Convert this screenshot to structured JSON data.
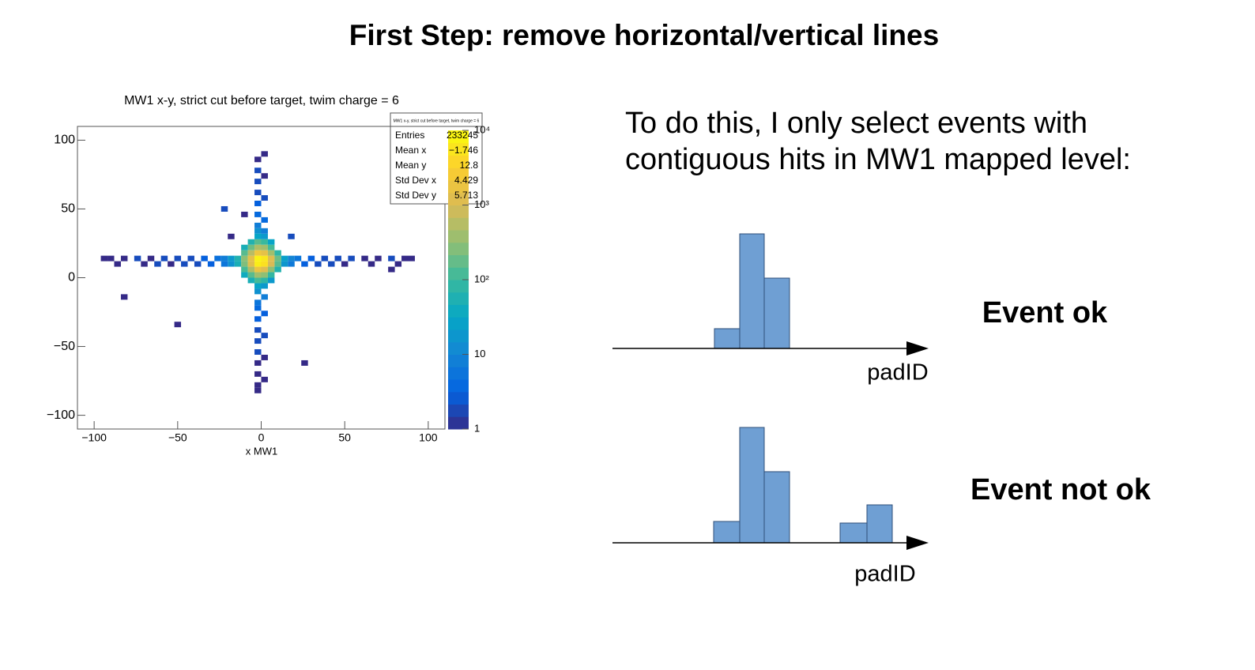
{
  "title": "First Step: remove horizontal/vertical lines",
  "chart_data": {
    "type": "heatmap",
    "title": "MW1 x-y, strict cut before target, twim charge = 6",
    "x_label": "x MW1",
    "xlim": [
      -110,
      110
    ],
    "ylim": [
      -110,
      110
    ],
    "xticks": [
      {
        "value": -100,
        "label": "−100"
      },
      {
        "value": -50,
        "label": "−50"
      },
      0,
      50,
      100
    ],
    "yticks": [
      {
        "value": -100,
        "label": "−100"
      },
      {
        "value": -50,
        "label": "−50"
      },
      0,
      50,
      100
    ],
    "bin_width": 4,
    "zlim": [
      1,
      10000
    ],
    "zscale": "log",
    "zticks": [
      1,
      10,
      {
        "value": 100,
        "label": "10²"
      },
      {
        "value": 1000,
        "label": "10³"
      },
      {
        "value": 10000,
        "label": "10⁴"
      }
    ],
    "palette": [
      "#352a87",
      "#0363e1",
      "#1485d4",
      "#06a7c6",
      "#38b99e",
      "#92bf73",
      "#d9ba56",
      "#fcce2e",
      "#f9fb0e"
    ],
    "cells": [
      [
        -14,
        14,
        60
      ],
      [
        -10,
        14,
        300
      ],
      [
        -6,
        14,
        1500
      ],
      [
        -2,
        14,
        8000
      ],
      [
        2,
        14,
        6000
      ],
      [
        6,
        14,
        1200
      ],
      [
        10,
        14,
        200
      ],
      [
        -14,
        10,
        50
      ],
      [
        -10,
        10,
        250
      ],
      [
        -6,
        10,
        1300
      ],
      [
        -2,
        10,
        7000
      ],
      [
        2,
        10,
        5000
      ],
      [
        6,
        10,
        1000
      ],
      [
        10,
        10,
        150
      ],
      [
        -10,
        18,
        150
      ],
      [
        -6,
        18,
        600
      ],
      [
        -2,
        18,
        2000
      ],
      [
        2,
        18,
        1500
      ],
      [
        6,
        18,
        400
      ],
      [
        10,
        18,
        80
      ],
      [
        -10,
        6,
        120
      ],
      [
        -6,
        6,
        500
      ],
      [
        -2,
        6,
        1800
      ],
      [
        2,
        6,
        1200
      ],
      [
        6,
        6,
        300
      ],
      [
        10,
        6,
        60
      ],
      [
        -10,
        22,
        50
      ],
      [
        -6,
        22,
        200
      ],
      [
        -2,
        22,
        500
      ],
      [
        2,
        22,
        400
      ],
      [
        6,
        22,
        120
      ],
      [
        -10,
        2,
        40
      ],
      [
        -6,
        2,
        150
      ],
      [
        -2,
        2,
        400
      ],
      [
        2,
        2,
        300
      ],
      [
        6,
        2,
        90
      ],
      [
        -6,
        26,
        60
      ],
      [
        -2,
        26,
        150
      ],
      [
        2,
        26,
        100
      ],
      [
        6,
        26,
        30
      ],
      [
        -6,
        -2,
        50
      ],
      [
        -2,
        -2,
        120
      ],
      [
        2,
        -2,
        80
      ],
      [
        6,
        -2,
        20
      ],
      [
        -18,
        14,
        20
      ],
      [
        -22,
        14,
        8
      ],
      [
        -26,
        14,
        5
      ],
      [
        -34,
        14,
        3
      ],
      [
        -42,
        14,
        2
      ],
      [
        -50,
        14,
        2
      ],
      [
        -58,
        14,
        2
      ],
      [
        -66,
        14,
        1
      ],
      [
        -74,
        14,
        2
      ],
      [
        -82,
        14,
        1
      ],
      [
        -90,
        14,
        1
      ],
      [
        -94,
        14,
        1
      ],
      [
        -18,
        10,
        15
      ],
      [
        -22,
        10,
        6
      ],
      [
        -30,
        10,
        3
      ],
      [
        -38,
        10,
        2
      ],
      [
        -46,
        10,
        2
      ],
      [
        -54,
        10,
        1
      ],
      [
        -62,
        10,
        2
      ],
      [
        -70,
        10,
        1
      ],
      [
        -86,
        10,
        1
      ],
      [
        14,
        14,
        25
      ],
      [
        18,
        14,
        10
      ],
      [
        22,
        14,
        6
      ],
      [
        30,
        14,
        3
      ],
      [
        38,
        14,
        2
      ],
      [
        46,
        14,
        2
      ],
      [
        54,
        14,
        2
      ],
      [
        62,
        14,
        1
      ],
      [
        70,
        14,
        1
      ],
      [
        78,
        14,
        2
      ],
      [
        86,
        14,
        1
      ],
      [
        90,
        14,
        1
      ],
      [
        14,
        10,
        18
      ],
      [
        18,
        10,
        7
      ],
      [
        26,
        10,
        3
      ],
      [
        34,
        10,
        2
      ],
      [
        42,
        10,
        2
      ],
      [
        50,
        10,
        1
      ],
      [
        66,
        10,
        1
      ],
      [
        82,
        10,
        1
      ],
      [
        -2,
        30,
        30
      ],
      [
        2,
        30,
        20
      ],
      [
        -2,
        34,
        15
      ],
      [
        2,
        34,
        8
      ],
      [
        -2,
        38,
        8
      ],
      [
        2,
        42,
        4
      ],
      [
        -2,
        46,
        4
      ],
      [
        -2,
        54,
        3
      ],
      [
        2,
        58,
        2
      ],
      [
        -2,
        62,
        2
      ],
      [
        -2,
        70,
        2
      ],
      [
        2,
        74,
        1
      ],
      [
        -2,
        78,
        2
      ],
      [
        -2,
        86,
        1
      ],
      [
        2,
        90,
        1
      ],
      [
        -2,
        -6,
        30
      ],
      [
        2,
        -6,
        20
      ],
      [
        -2,
        -10,
        15
      ],
      [
        2,
        -14,
        8
      ],
      [
        -2,
        -18,
        6
      ],
      [
        -2,
        -22,
        4
      ],
      [
        2,
        -26,
        3
      ],
      [
        -2,
        -30,
        3
      ],
      [
        -2,
        -38,
        2
      ],
      [
        2,
        -42,
        2
      ],
      [
        -2,
        -46,
        2
      ],
      [
        -2,
        -54,
        2
      ],
      [
        2,
        -58,
        1
      ],
      [
        -2,
        -62,
        1
      ],
      [
        -2,
        -70,
        1
      ],
      [
        2,
        -74,
        1
      ],
      [
        -2,
        -78,
        1
      ],
      [
        -2,
        -82,
        1
      ],
      [
        -18,
        30,
        1
      ],
      [
        -22,
        50,
        2
      ],
      [
        18,
        30,
        2
      ],
      [
        -10,
        46,
        1
      ],
      [
        26,
        -62,
        1
      ],
      [
        -50,
        -34,
        1
      ],
      [
        -82,
        -14,
        1
      ],
      [
        78,
        6,
        1
      ]
    ],
    "stats": {
      "title": "MW1 x-y, strict cut before target, twim charge = 6",
      "rows": [
        [
          "Entries",
          "233245"
        ],
        [
          "Mean x",
          "−1.746"
        ],
        [
          "Mean y",
          "12.8"
        ],
        [
          "Std Dev x",
          "4.429"
        ],
        [
          "Std Dev y",
          "5.713"
        ]
      ]
    }
  },
  "text": [
    "To do this, I only select events with",
    "contiguous hits in MW1 mapped level:"
  ],
  "diagrams": [
    {
      "label": "padID",
      "verdict": "Event ok",
      "color": "#70b347"
    },
    {
      "label": "padID",
      "verdict": "Event not ok",
      "color": "#c9202a"
    }
  ]
}
